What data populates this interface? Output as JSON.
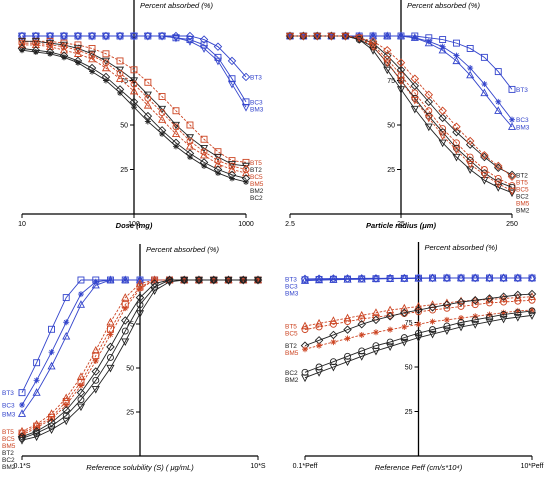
{
  "colors": {
    "blue": "#3344cc",
    "red": "#cc4422",
    "black": "#222222",
    "darkred": "#7a2a1a"
  },
  "chart_data": [
    {
      "type": "line",
      "xscale": "log",
      "xlim": [
        10,
        1000
      ],
      "ylim": [
        0,
        100
      ],
      "xticks": [
        10,
        100,
        1000
      ],
      "xtick_labels": [
        "10",
        "100",
        "1000"
      ],
      "yticks": [
        25,
        50,
        75
      ],
      "ytick_labels": [
        "25",
        "50",
        "75"
      ],
      "xlabel": "Dose (mg)",
      "ylabel": "Percent absorbed (%)",
      "ylabel_value": 100,
      "x": [
        10,
        13.3,
        17.8,
        23.7,
        31.6,
        42.2,
        56.2,
        75,
        100,
        133,
        178,
        237,
        316,
        422,
        562,
        750,
        1000
      ],
      "series": [
        {
          "name": "BT3",
          "color": "blue",
          "marker": "diamond",
          "dash": false,
          "values": [
            100,
            100,
            100,
            100,
            100,
            100,
            100,
            100,
            100,
            100,
            100,
            100,
            100,
            98,
            94,
            86,
            77
          ]
        },
        {
          "name": "BC3",
          "color": "blue",
          "marker": "square",
          "dash": false,
          "values": [
            100,
            100,
            100,
            100,
            100,
            100,
            100,
            100,
            100,
            100,
            100,
            99,
            98,
            95,
            88,
            76,
            63
          ]
        },
        {
          "name": "BM3",
          "color": "blue",
          "marker": "triangle-down",
          "dash": false,
          "values": [
            100,
            100,
            100,
            100,
            100,
            100,
            100,
            100,
            100,
            100,
            100,
            99,
            97,
            93,
            86,
            73,
            60
          ]
        },
        {
          "name": "BT5",
          "color": "red",
          "marker": "square",
          "dash": true,
          "values": [
            97,
            97,
            97,
            96,
            95,
            93,
            90,
            86,
            81,
            74,
            66,
            58,
            50,
            42,
            35,
            30,
            29
          ]
        },
        {
          "name": "BT2",
          "color": "black",
          "marker": "triangle-down",
          "dash": false,
          "values": [
            97,
            97,
            96,
            95,
            93,
            90,
            86,
            81,
            75,
            67,
            59,
            50,
            43,
            37,
            32,
            28,
            27
          ]
        },
        {
          "name": "BC5",
          "color": "red",
          "marker": "circle",
          "dash": true,
          "values": [
            96,
            96,
            95,
            94,
            92,
            89,
            85,
            79,
            73,
            65,
            57,
            49,
            41,
            35,
            30,
            27,
            25
          ]
        },
        {
          "name": "BM5",
          "color": "red",
          "marker": "triangle",
          "dash": true,
          "values": [
            95,
            95,
            94,
            92,
            90,
            87,
            82,
            76,
            69,
            61,
            53,
            45,
            38,
            33,
            28,
            25,
            23
          ]
        },
        {
          "name": "BM2",
          "color": "black",
          "marker": "diamond",
          "dash": false,
          "values": [
            93,
            92,
            91,
            89,
            86,
            82,
            77,
            70,
            63,
            55,
            47,
            40,
            34,
            29,
            25,
            22,
            20
          ]
        },
        {
          "name": "BC2",
          "color": "black",
          "marker": "star",
          "dash": false,
          "values": [
            92,
            91,
            90,
            88,
            85,
            80,
            75,
            68,
            60,
            52,
            45,
            38,
            32,
            27,
            23,
            20,
            18
          ]
        }
      ],
      "end_labels": [
        "BT3",
        "BC3",
        "BM3",
        "BT5",
        "BT2",
        "BC5",
        "BM5",
        "BM2",
        "BC2"
      ]
    },
    {
      "type": "line",
      "xscale": "log",
      "xlim": [
        2.5,
        250
      ],
      "ylim": [
        0,
        100
      ],
      "xticks": [
        2.5,
        25,
        250
      ],
      "xtick_labels": [
        "2.5",
        "25",
        "250"
      ],
      "yticks": [
        25,
        50,
        75
      ],
      "ytick_labels": [
        "25",
        "50",
        "75"
      ],
      "xlabel": "Particle radius (μm)",
      "ylabel": "Percent absorbed (%)",
      "ylabel_value": 100,
      "x": [
        2.5,
        3.3,
        4.4,
        5.9,
        7.9,
        10.5,
        14,
        18.8,
        25,
        33.3,
        44.5,
        59.3,
        79,
        105,
        141,
        188,
        250
      ],
      "series": [
        {
          "name": "BT3",
          "color": "blue",
          "marker": "square",
          "dash": false,
          "values": [
            100,
            100,
            100,
            100,
            100,
            100,
            100,
            100,
            100,
            100,
            99,
            98,
            96,
            93,
            88,
            80,
            70
          ]
        },
        {
          "name": "BC3",
          "color": "blue",
          "marker": "star",
          "dash": false,
          "values": [
            100,
            100,
            100,
            100,
            100,
            100,
            100,
            100,
            100,
            99,
            97,
            94,
            89,
            82,
            73,
            63,
            53
          ]
        },
        {
          "name": "BM3",
          "color": "blue",
          "marker": "triangle",
          "dash": false,
          "values": [
            100,
            100,
            100,
            100,
            100,
            100,
            100,
            100,
            100,
            99,
            96,
            92,
            86,
            78,
            68,
            58,
            49
          ]
        },
        {
          "name": "BT2",
          "color": "black",
          "marker": "diamond",
          "dash": false,
          "values": [
            100,
            100,
            100,
            100,
            100,
            99,
            96,
            89,
            81,
            72,
            63,
            54,
            46,
            39,
            32,
            26,
            22
          ]
        },
        {
          "name": "BT5",
          "color": "red",
          "marker": "diamond",
          "dash": true,
          "values": [
            100,
            100,
            100,
            100,
            100,
            99,
            97,
            92,
            85,
            76,
            67,
            58,
            49,
            41,
            33,
            27,
            21
          ]
        },
        {
          "name": "BC5",
          "color": "red",
          "marker": "circle",
          "dash": true,
          "values": [
            100,
            100,
            100,
            100,
            100,
            99,
            95,
            87,
            78,
            68,
            58,
            48,
            40,
            32,
            25,
            20,
            16
          ]
        },
        {
          "name": "BC2",
          "color": "black",
          "marker": "circle",
          "dash": false,
          "values": [
            100,
            100,
            100,
            100,
            100,
            98,
            94,
            85,
            75,
            65,
            55,
            46,
            37,
            30,
            23,
            18,
            15
          ]
        },
        {
          "name": "BM2",
          "color": "black",
          "marker": "triangle-down",
          "dash": false,
          "values": [
            100,
            100,
            100,
            100,
            100,
            98,
            92,
            81,
            70,
            59,
            49,
            40,
            32,
            25,
            19,
            15,
            12
          ]
        },
        {
          "name": "BM5",
          "color": "red",
          "marker": "triangle-down",
          "dash": true,
          "values": [
            100,
            100,
            100,
            100,
            100,
            99,
            94,
            85,
            75,
            64,
            54,
            44,
            36,
            28,
            22,
            17,
            13
          ]
        }
      ],
      "end_labels": [
        "BT3",
        "BC3",
        "BM3",
        "BT2",
        "BT5",
        "BC5",
        "BC2",
        "BM2",
        "BM5"
      ]
    },
    {
      "type": "line",
      "xscale": "log",
      "xlim": [
        0.1,
        10
      ],
      "ylim": [
        0,
        100
      ],
      "xticks": [
        0.1,
        10
      ],
      "xtick_labels": [
        "0.1*S",
        "10*S"
      ],
      "yticks": [
        25,
        50,
        75
      ],
      "ytick_labels": [
        "25",
        "50",
        "75"
      ],
      "xlabel": "Reference solubility (S) ( μg/mL)",
      "ylabel": "Percent absorbed (%)",
      "ylabel_value": 100,
      "x": [
        0.1,
        0.133,
        0.178,
        0.237,
        0.316,
        0.422,
        0.562,
        0.75,
        1,
        1.33,
        1.78,
        2.37,
        3.16,
        4.22,
        5.62,
        7.5,
        10
      ],
      "series": [
        {
          "name": "BT3",
          "color": "blue",
          "marker": "square",
          "dash": false,
          "values": [
            36,
            53,
            72,
            90,
            100,
            100,
            100,
            100,
            100,
            100,
            100,
            100,
            100,
            100,
            100,
            100,
            100
          ]
        },
        {
          "name": "BC3",
          "color": "blue",
          "marker": "star",
          "dash": false,
          "values": [
            29,
            43,
            59,
            76,
            92,
            99,
            100,
            100,
            100,
            100,
            100,
            100,
            100,
            100,
            100,
            100,
            100
          ]
        },
        {
          "name": "BM3",
          "color": "blue",
          "marker": "triangle",
          "dash": false,
          "values": [
            24,
            36,
            51,
            68,
            86,
            97,
            100,
            100,
            100,
            100,
            100,
            100,
            100,
            100,
            100,
            100,
            100
          ]
        },
        {
          "name": "BT5",
          "color": "red",
          "marker": "triangle",
          "dash": true,
          "values": [
            14,
            18,
            24,
            33,
            45,
            60,
            76,
            90,
            98,
            100,
            100,
            100,
            100,
            100,
            100,
            100,
            100
          ]
        },
        {
          "name": "BC5",
          "color": "red",
          "marker": "square",
          "dash": true,
          "values": [
            13,
            17,
            22,
            31,
            42,
            57,
            72,
            86,
            96,
            100,
            100,
            100,
            100,
            100,
            100,
            100,
            100
          ]
        },
        {
          "name": "BM5",
          "color": "red",
          "marker": "star",
          "dash": true,
          "values": [
            12,
            16,
            21,
            29,
            40,
            54,
            69,
            84,
            95,
            100,
            100,
            100,
            100,
            100,
            100,
            100,
            100
          ]
        },
        {
          "name": "BT2",
          "color": "black",
          "marker": "diamond",
          "dash": false,
          "values": [
            11,
            14,
            19,
            26,
            36,
            48,
            62,
            77,
            90,
            98,
            100,
            100,
            100,
            100,
            100,
            100,
            100
          ]
        },
        {
          "name": "BC2",
          "color": "black",
          "marker": "circle",
          "dash": false,
          "values": [
            10,
            13,
            17,
            23,
            32,
            43,
            56,
            71,
            86,
            96,
            100,
            100,
            100,
            100,
            100,
            100,
            100
          ]
        },
        {
          "name": "BM2",
          "color": "black",
          "marker": "triangle-down",
          "dash": false,
          "values": [
            9,
            11,
            15,
            20,
            28,
            38,
            50,
            65,
            81,
            94,
            99,
            100,
            100,
            100,
            100,
            100,
            100
          ]
        }
      ],
      "start_labels": [
        "BT3",
        "BC3",
        "BM3",
        "BT5",
        "BC5",
        "BM5",
        "BT2",
        "BC2",
        "BM2"
      ]
    },
    {
      "type": "line",
      "xscale": "log",
      "xlim": [
        0.1,
        10
      ],
      "ylim": [
        0,
        100
      ],
      "xticks": [
        0.1,
        10
      ],
      "xtick_labels": [
        "0.1*Peff",
        "10*Peff"
      ],
      "yticks": [
        25,
        50,
        75
      ],
      "ytick_labels": [
        "25",
        "50",
        "75"
      ],
      "xlabel": "Reference Peff (cm/s*10⁴)",
      "ylabel": "Percent absorbed (%)",
      "ylabel_value": 100,
      "x": [
        0.1,
        0.133,
        0.178,
        0.237,
        0.316,
        0.422,
        0.562,
        0.75,
        1,
        1.33,
        1.78,
        2.37,
        3.16,
        4.22,
        5.62,
        7.5,
        10
      ],
      "series": [
        {
          "name": "BT3",
          "color": "blue",
          "marker": "diamond",
          "dash": false,
          "values": [
            99.5,
            99.6,
            99.7,
            99.7,
            99.8,
            99.8,
            99.9,
            99.9,
            100,
            100,
            100,
            100,
            100,
            100,
            100,
            100,
            100
          ]
        },
        {
          "name": "BC3",
          "color": "blue",
          "marker": "square",
          "dash": false,
          "values": [
            99,
            99.2,
            99.3,
            99.4,
            99.5,
            99.6,
            99.7,
            99.8,
            99.9,
            100,
            100,
            100,
            100,
            100,
            100,
            100,
            100
          ]
        },
        {
          "name": "BM3",
          "color": "blue",
          "marker": "triangle",
          "dash": false,
          "values": [
            98.5,
            98.8,
            99,
            99.2,
            99.3,
            99.5,
            99.6,
            99.7,
            99.8,
            99.9,
            100,
            100,
            100,
            100,
            100,
            100,
            100
          ]
        },
        {
          "name": "BT5",
          "color": "red",
          "marker": "triangle",
          "dash": true,
          "values": [
            73,
            74.5,
            76,
            77.5,
            79,
            80.5,
            82,
            83,
            84,
            85,
            86,
            87,
            87.5,
            88,
            88.5,
            89,
            89.5
          ]
        },
        {
          "name": "BC5",
          "color": "red",
          "marker": "circle",
          "dash": true,
          "values": [
            71,
            72.5,
            74,
            75.5,
            77,
            78,
            79,
            80,
            81,
            82,
            83,
            84,
            85,
            86,
            86.5,
            87,
            87.5
          ]
        },
        {
          "name": "BT2",
          "color": "black",
          "marker": "diamond",
          "dash": false,
          "values": [
            62,
            65,
            68,
            71,
            74,
            76.5,
            78.5,
            80.5,
            82,
            83.5,
            85,
            86.5,
            87.5,
            88.5,
            89.5,
            90.5,
            91
          ]
        },
        {
          "name": "BM5",
          "color": "red",
          "marker": "star",
          "dash": true,
          "values": [
            60,
            62,
            64,
            66,
            68,
            69.5,
            71,
            72.5,
            74,
            75.5,
            76.5,
            77.5,
            78.5,
            79.5,
            80.5,
            81.5,
            82
          ]
        },
        {
          "name": "BC2",
          "color": "black",
          "marker": "circle",
          "dash": false,
          "values": [
            47,
            50,
            53,
            56,
            59,
            62,
            64,
            66.5,
            69,
            71,
            73,
            75,
            76.5,
            78,
            79.5,
            80.5,
            81.5
          ]
        },
        {
          "name": "BM2",
          "color": "black",
          "marker": "triangle-down",
          "dash": false,
          "values": [
            44,
            47,
            50,
            53,
            56,
            59,
            61.5,
            64,
            66.5,
            68.5,
            70.5,
            72.5,
            74,
            75.5,
            77,
            78,
            79
          ]
        }
      ],
      "start_labels": [
        "BT3",
        "BC3",
        "BM3",
        "BT5",
        "BC5",
        "BT2",
        "BM5",
        "BC2",
        "BM2"
      ]
    }
  ]
}
